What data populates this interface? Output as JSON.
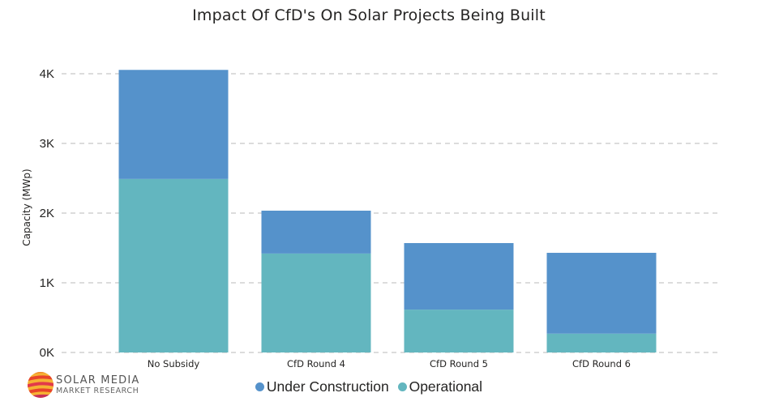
{
  "chart_data": {
    "type": "bar",
    "stacked": true,
    "title": "Impact Of CfD's On Solar Projects Being Built",
    "xlabel": "",
    "ylabel": "Capacity (MWp)",
    "categories": [
      "No Subsidy",
      "CfD Round 4",
      "CfD Round 5",
      "CfD Round 6"
    ],
    "series": [
      {
        "name": "Operational",
        "color": "#63B6BF",
        "values": [
          2490,
          1420,
          615,
          270
        ]
      },
      {
        "name": "Under Construction",
        "color": "#5592CB",
        "values": [
          1565,
          615,
          955,
          1160
        ]
      }
    ],
    "ylim": [
      0,
      4000
    ],
    "yticks": [
      0,
      1000,
      2000,
      3000,
      4000
    ],
    "ytick_labels": [
      "0K",
      "1K",
      "2K",
      "3K",
      "4K"
    ],
    "grid": true,
    "legend": {
      "position": "bottom",
      "entries": [
        {
          "label": "Under Construction",
          "color": "#5592CB"
        },
        {
          "label": "Operational",
          "color": "#63B6BF"
        }
      ]
    }
  },
  "branding": {
    "logo_line1": "SOLAR MEDIA",
    "logo_line2": "MARKET RESEARCH"
  }
}
